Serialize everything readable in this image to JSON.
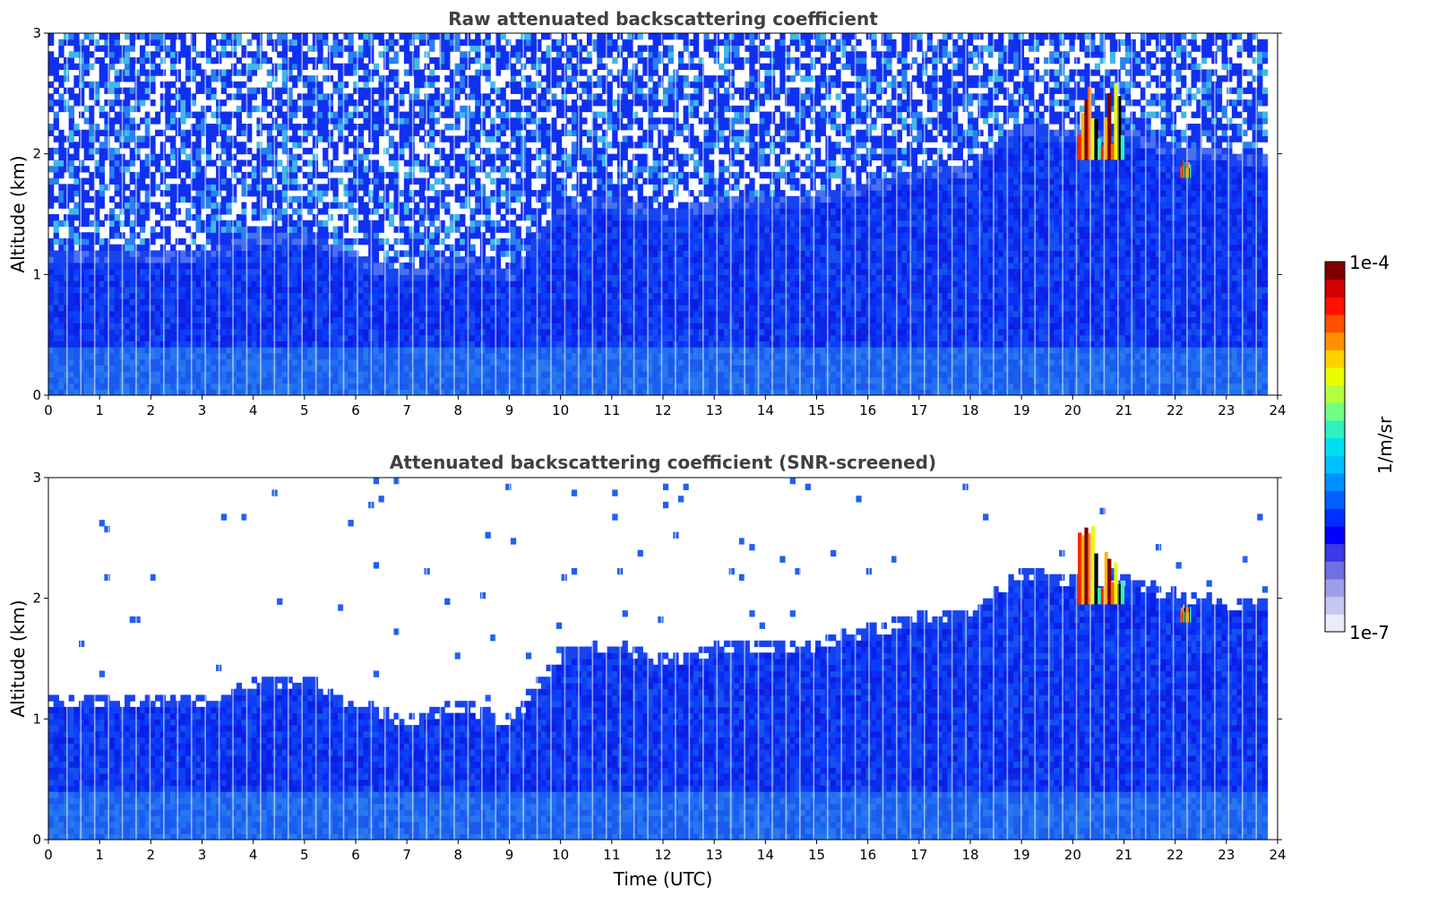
{
  "chart_data": [
    {
      "type": "heatmap",
      "title": "Raw attenuated backscattering coefficient",
      "xlabel": "",
      "ylabel": "Altitude (km)",
      "xlim": [
        0,
        24
      ],
      "ylim": [
        0,
        3
      ],
      "x_ticks": [
        "0",
        "1",
        "2",
        "3",
        "4",
        "5",
        "6",
        "7",
        "8",
        "9",
        "10",
        "11",
        "12",
        "13",
        "14",
        "15",
        "16",
        "17",
        "18",
        "19",
        "20",
        "21",
        "22",
        "23",
        "24"
      ],
      "y_ticks": [
        "0",
        "1",
        "2",
        "3"
      ],
      "screened": false,
      "boundary_layer_top_km": [
        {
          "x": 0,
          "y": 1.12
        },
        {
          "x": 2,
          "y": 1.12
        },
        {
          "x": 3,
          "y": 1.12
        },
        {
          "x": 4,
          "y": 1.25
        },
        {
          "x": 5,
          "y": 1.3
        },
        {
          "x": 6,
          "y": 1.1
        },
        {
          "x": 7,
          "y": 0.95
        },
        {
          "x": 8,
          "y": 1.1
        },
        {
          "x": 9,
          "y": 0.95
        },
        {
          "x": 10,
          "y": 1.5
        },
        {
          "x": 11,
          "y": 1.6
        },
        {
          "x": 12,
          "y": 1.45
        },
        {
          "x": 13,
          "y": 1.55
        },
        {
          "x": 14,
          "y": 1.6
        },
        {
          "x": 15,
          "y": 1.6
        },
        {
          "x": 16,
          "y": 1.7
        },
        {
          "x": 17,
          "y": 1.8
        },
        {
          "x": 18,
          "y": 1.85
        },
        {
          "x": 19,
          "y": 2.2
        },
        {
          "x": 20,
          "y": 2.1
        },
        {
          "x": 21,
          "y": 2.15
        },
        {
          "x": 22,
          "y": 2.0
        },
        {
          "x": 23,
          "y": 1.95
        },
        {
          "x": 23.8,
          "y": 1.9
        }
      ],
      "cloud_features": [
        {
          "x_start": 20.1,
          "x_end": 21.0,
          "base_km": 1.95,
          "top_km": 2.6,
          "level": "1e-4"
        },
        {
          "x_start": 22.1,
          "x_end": 22.3,
          "base_km": 1.8,
          "top_km": 1.95,
          "level": "high"
        }
      ],
      "data_end_hour": 23.8
    },
    {
      "type": "heatmap",
      "title": "Attenuated backscattering coefficient (SNR-screened)",
      "xlabel": "Time (UTC)",
      "ylabel": "Altitude (km)",
      "xlim": [
        0,
        24
      ],
      "ylim": [
        0,
        3
      ],
      "x_ticks": [
        "0",
        "1",
        "2",
        "3",
        "4",
        "5",
        "6",
        "7",
        "8",
        "9",
        "10",
        "11",
        "12",
        "13",
        "14",
        "15",
        "16",
        "17",
        "18",
        "19",
        "20",
        "21",
        "22",
        "23",
        "24"
      ],
      "y_ticks": [
        "0",
        "1",
        "2",
        "3"
      ],
      "screened": true,
      "boundary_layer_top_km": [
        {
          "x": 0,
          "y": 1.12
        },
        {
          "x": 2,
          "y": 1.12
        },
        {
          "x": 3,
          "y": 1.12
        },
        {
          "x": 4,
          "y": 1.25
        },
        {
          "x": 5,
          "y": 1.3
        },
        {
          "x": 6,
          "y": 1.1
        },
        {
          "x": 7,
          "y": 0.95
        },
        {
          "x": 8,
          "y": 1.1
        },
        {
          "x": 9,
          "y": 0.95
        },
        {
          "x": 10,
          "y": 1.5
        },
        {
          "x": 11,
          "y": 1.6
        },
        {
          "x": 12,
          "y": 1.45
        },
        {
          "x": 13,
          "y": 1.55
        },
        {
          "x": 14,
          "y": 1.6
        },
        {
          "x": 15,
          "y": 1.6
        },
        {
          "x": 16,
          "y": 1.7
        },
        {
          "x": 17,
          "y": 1.8
        },
        {
          "x": 18,
          "y": 1.85
        },
        {
          "x": 19,
          "y": 2.2
        },
        {
          "x": 20,
          "y": 2.1
        },
        {
          "x": 21,
          "y": 2.15
        },
        {
          "x": 22,
          "y": 2.0
        },
        {
          "x": 23,
          "y": 1.95
        },
        {
          "x": 23.8,
          "y": 1.9
        }
      ],
      "cloud_features": [
        {
          "x_start": 20.1,
          "x_end": 21.0,
          "base_km": 1.95,
          "top_km": 2.6,
          "level": "1e-4"
        },
        {
          "x_start": 22.1,
          "x_end": 22.3,
          "base_km": 1.8,
          "top_km": 1.95,
          "level": "high"
        }
      ],
      "data_end_hour": 23.8
    }
  ],
  "colorbar": {
    "label": "1/m/sr",
    "min_label": "1e-7",
    "max_label": "1e-4",
    "colors": [
      "#ececf8",
      "#c6c6f0",
      "#9e9ee8",
      "#7070e0",
      "#3a3ae6",
      "#0000ff",
      "#0030ff",
      "#0060ff",
      "#0090ff",
      "#00c0ff",
      "#00e0f0",
      "#30f0c0",
      "#70ff80",
      "#b0ff40",
      "#e8ff00",
      "#ffd000",
      "#ff9000",
      "#ff5000",
      "#ff1000",
      "#d00000",
      "#800000"
    ]
  }
}
